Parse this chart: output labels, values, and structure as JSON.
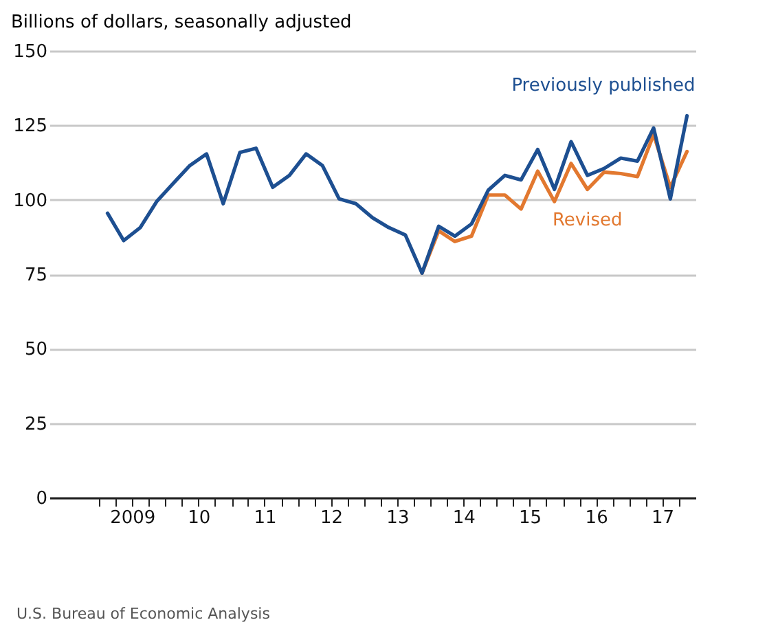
{
  "chart_data": {
    "type": "line",
    "ylabel": "Billions of dollars, seasonally adjusted",
    "annotations": [
      "U.S. Bureau of Economic Analysis"
    ],
    "x": [
      "2009-02-15",
      "2009-05-15",
      "2009-08-15",
      "2009-11-15",
      "2010-02-15",
      "2010-05-15",
      "2010-08-15",
      "2010-11-15",
      "2011-02-15",
      "2011-05-15",
      "2011-08-15",
      "2011-11-15",
      "2012-02-15",
      "2012-05-15",
      "2012-08-15",
      "2012-11-15",
      "2013-02-15",
      "2013-05-15",
      "2013-08-15",
      "2013-11-15",
      "2014-02-15",
      "2014-05-15",
      "2014-08-15",
      "2014-11-15",
      "2015-02-15",
      "2015-05-15",
      "2015-08-15",
      "2015-11-15",
      "2016-02-15",
      "2016-05-15",
      "2016-08-15",
      "2016-11-15",
      "2017-02-15",
      "2017-05-15",
      "2017-08-15",
      "2017-11-15"
    ],
    "series": [
      {
        "name": "Previously published",
        "color": "#1d4f91",
        "values": [
          95.5,
          86.3,
          90.7,
          99.6,
          105.7,
          111.5,
          115.4,
          98.7,
          115.9,
          117.3,
          104.2,
          108.2,
          115.4,
          111.5,
          100.3,
          98.7,
          94,
          90.7,
          88.2,
          75.4,
          91.1,
          87.8,
          91.9,
          103.2,
          108.2,
          106.7,
          116.9,
          103.5,
          119.5,
          108.2,
          110.5,
          114,
          113,
          124.1,
          100.3,
          128.2
        ]
      },
      {
        "name": "Revised",
        "color": "#e2782f",
        "values": [
          null,
          null,
          null,
          null,
          null,
          null,
          null,
          null,
          null,
          null,
          null,
          null,
          null,
          null,
          null,
          null,
          null,
          null,
          null,
          75.4,
          89.6,
          86,
          87.8,
          101.6,
          101.6,
          96.9,
          109.6,
          99.4,
          112.2,
          103.5,
          109.3,
          108.8,
          107.8,
          121.9,
          104.2,
          116.2
        ]
      }
    ],
    "xlim": [
      "2008-04-01",
      "2018-01-01"
    ],
    "xticks": [
      {
        "value": "2009-01-01",
        "label": null
      },
      {
        "value": "2009-04-01",
        "label": null
      },
      {
        "value": "2009-07-01",
        "label": "2009"
      },
      {
        "value": "2009-10-01",
        "label": null
      },
      {
        "value": "2010-01-01",
        "label": null
      },
      {
        "value": "2010-04-01",
        "label": null
      },
      {
        "value": "2010-07-01",
        "label": "10"
      },
      {
        "value": "2010-10-01",
        "label": null
      },
      {
        "value": "2011-01-01",
        "label": null
      },
      {
        "value": "2011-04-01",
        "label": null
      },
      {
        "value": "2011-07-01",
        "label": "11"
      },
      {
        "value": "2011-10-01",
        "label": null
      },
      {
        "value": "2012-01-01",
        "label": null
      },
      {
        "value": "2012-04-01",
        "label": null
      },
      {
        "value": "2012-07-01",
        "label": "12"
      },
      {
        "value": "2012-10-01",
        "label": null
      },
      {
        "value": "2013-01-01",
        "label": null
      },
      {
        "value": "2013-04-01",
        "label": null
      },
      {
        "value": "2013-07-01",
        "label": "13"
      },
      {
        "value": "2013-10-01",
        "label": null
      },
      {
        "value": "2014-01-01",
        "label": null
      },
      {
        "value": "2014-04-01",
        "label": null
      },
      {
        "value": "2014-07-01",
        "label": "14"
      },
      {
        "value": "2014-10-01",
        "label": null
      },
      {
        "value": "2015-01-01",
        "label": null
      },
      {
        "value": "2015-04-01",
        "label": null
      },
      {
        "value": "2015-07-01",
        "label": "15"
      },
      {
        "value": "2015-10-01",
        "label": null
      },
      {
        "value": "2016-01-01",
        "label": null
      },
      {
        "value": "2016-04-01",
        "label": null
      },
      {
        "value": "2016-07-01",
        "label": "16"
      },
      {
        "value": "2016-10-01",
        "label": null
      },
      {
        "value": "2017-01-01",
        "label": null
      },
      {
        "value": "2017-04-01",
        "label": null
      },
      {
        "value": "2017-07-01",
        "label": "17"
      },
      {
        "value": "2017-10-01",
        "label": null
      }
    ],
    "ylim": [
      0,
      150
    ],
    "yticks": [
      0,
      25,
      50,
      75,
      100,
      125,
      150
    ],
    "grid": "y",
    "legend": false,
    "line_style": "solid",
    "marker": "none"
  }
}
